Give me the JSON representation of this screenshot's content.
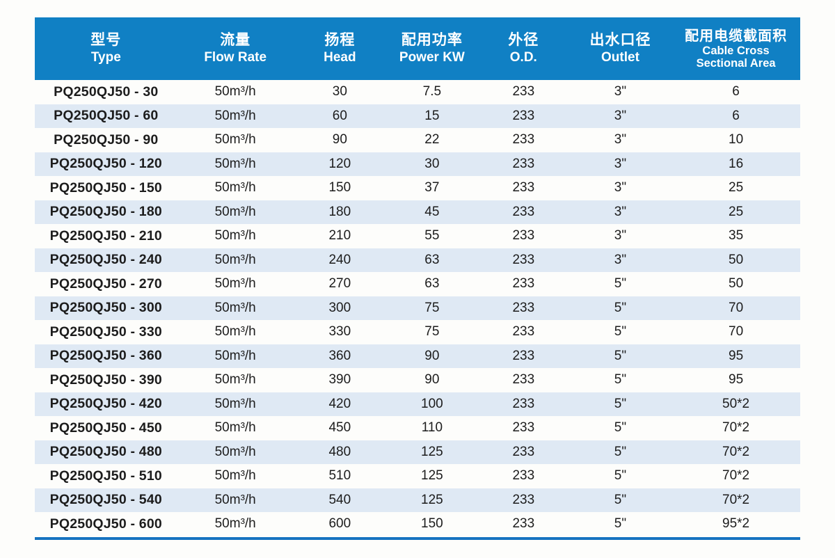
{
  "colors": {
    "header_bg": "#1080c4",
    "stripe_bg": "#dfe9f4",
    "bottom_line": "#1673c0",
    "text": "#1c1c1c",
    "header_text": "#ffffff",
    "page_bg": "#fdfdfb"
  },
  "table": {
    "columns": [
      {
        "key": "type",
        "cn": "型号",
        "en": "Type"
      },
      {
        "key": "flow",
        "cn": "流量",
        "en": "Flow Rate"
      },
      {
        "key": "head",
        "cn": "扬程",
        "en": "Head"
      },
      {
        "key": "power",
        "cn": "配用功率",
        "en": "Power KW"
      },
      {
        "key": "od",
        "cn": "外径",
        "en": "O.D."
      },
      {
        "key": "outlet",
        "cn": "出水口径",
        "en": "Outlet"
      },
      {
        "key": "cable",
        "cn": "配用电缆截面积",
        "en": "Cable Cross",
        "en2": "Sectional Area"
      }
    ],
    "rows": [
      [
        "PQ250QJ50 - 30",
        "50m³/h",
        "30",
        "7.5",
        "233",
        "3\"",
        "6"
      ],
      [
        "PQ250QJ50 - 60",
        "50m³/h",
        "60",
        "15",
        "233",
        "3\"",
        "6"
      ],
      [
        "PQ250QJ50 - 90",
        "50m³/h",
        "90",
        "22",
        "233",
        "3\"",
        "10"
      ],
      [
        "PQ250QJ50 - 120",
        "50m³/h",
        "120",
        "30",
        "233",
        "3\"",
        "16"
      ],
      [
        "PQ250QJ50 - 150",
        "50m³/h",
        "150",
        "37",
        "233",
        "3\"",
        "25"
      ],
      [
        "PQ250QJ50 - 180",
        "50m³/h",
        "180",
        "45",
        "233",
        "3\"",
        "25"
      ],
      [
        "PQ250QJ50 - 210",
        "50m³/h",
        "210",
        "55",
        "233",
        "3\"",
        "35"
      ],
      [
        "PQ250QJ50 - 240",
        "50m³/h",
        "240",
        "63",
        "233",
        "3\"",
        "50"
      ],
      [
        "PQ250QJ50 - 270",
        "50m³/h",
        "270",
        "63",
        "233",
        "5\"",
        "50"
      ],
      [
        "PQ250QJ50 - 300",
        "50m³/h",
        "300",
        "75",
        "233",
        "5\"",
        "70"
      ],
      [
        "PQ250QJ50 - 330",
        "50m³/h",
        "330",
        "75",
        "233",
        "5\"",
        "70"
      ],
      [
        "PQ250QJ50 - 360",
        "50m³/h",
        "360",
        "90",
        "233",
        "5\"",
        "95"
      ],
      [
        "PQ250QJ50 - 390",
        "50m³/h",
        "390",
        "90",
        "233",
        "5\"",
        "95"
      ],
      [
        "PQ250QJ50 - 420",
        "50m³/h",
        "420",
        "100",
        "233",
        "5\"",
        "50*2"
      ],
      [
        "PQ250QJ50 - 450",
        "50m³/h",
        "450",
        "110",
        "233",
        "5\"",
        "70*2"
      ],
      [
        "PQ250QJ50 - 480",
        "50m³/h",
        "480",
        "125",
        "233",
        "5\"",
        "70*2"
      ],
      [
        "PQ250QJ50 - 510",
        "50m³/h",
        "510",
        "125",
        "233",
        "5\"",
        "70*2"
      ],
      [
        "PQ250QJ50 - 540",
        "50m³/h",
        "540",
        "125",
        "233",
        "5\"",
        "70*2"
      ],
      [
        "PQ250QJ50 - 600",
        "50m³/h",
        "600",
        "150",
        "233",
        "5\"",
        "95*2"
      ]
    ]
  }
}
